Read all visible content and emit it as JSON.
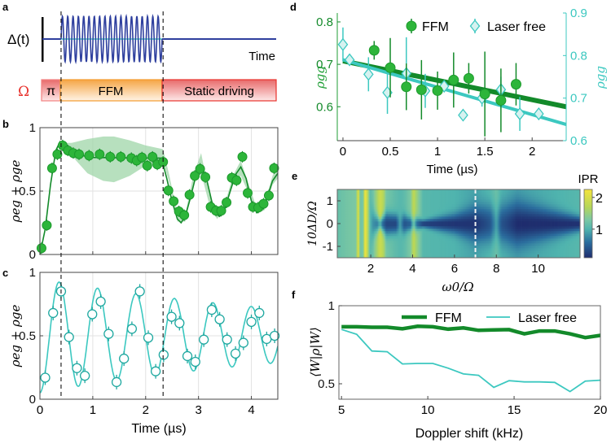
{
  "colors": {
    "ffm": "#1f9e35",
    "ffm_dark": "#138a2a",
    "laser": "#3cc8c0",
    "delta": "#2e3f9e",
    "omega": "#e8322d",
    "orange": "#f39a2c"
  },
  "panel_labels": [
    "a",
    "b",
    "c",
    "d",
    "e",
    "f"
  ],
  "panel_a": {
    "delta_label": "Δ(t)",
    "time_label": "Time",
    "omega_label": "Ω",
    "segments": [
      "π",
      "FFM",
      "Static driving"
    ],
    "ffm_cycles": 19
  },
  "chart_data": [
    {
      "id": "b",
      "type": "scatter",
      "xlabel": "",
      "ylabel": "ρeg + ρge",
      "xlim": [
        0,
        4.5
      ],
      "ylim": [
        0,
        1
      ],
      "yticks": [
        0,
        0.5,
        1
      ],
      "yticklabels": [
        "0",
        "0.5",
        "1"
      ],
      "xgrid": [
        1,
        2,
        3,
        4
      ],
      "ygrid": [
        0.5
      ],
      "dashed_x": [
        0.4,
        2.33
      ],
      "points": {
        "x": [
          0.03,
          0.13,
          0.23,
          0.33,
          0.43,
          0.53,
          0.63,
          0.74,
          0.93,
          1.13,
          1.33,
          1.53,
          1.73,
          1.83,
          1.93,
          2.03,
          2.13,
          2.22,
          2.33,
          2.43,
          2.53,
          2.63,
          2.73,
          2.83,
          2.93,
          3.03,
          3.13,
          3.23,
          3.33,
          3.43,
          3.53,
          3.63,
          3.72,
          3.83,
          3.93,
          4.03,
          4.13,
          4.23,
          4.33,
          4.43
        ],
        "y": [
          0.05,
          0.23,
          0.68,
          0.79,
          0.86,
          0.82,
          0.8,
          0.79,
          0.78,
          0.79,
          0.77,
          0.77,
          0.76,
          0.74,
          0.765,
          0.7,
          0.77,
          0.71,
          0.73,
          0.505,
          0.42,
          0.34,
          0.31,
          0.47,
          0.62,
          0.675,
          0.61,
          0.375,
          0.345,
          0.345,
          0.41,
          0.605,
          0.585,
          0.77,
          0.485,
          0.375,
          0.37,
          0.4,
          0.465,
          0.68
        ]
      },
      "fit": {
        "x": [
          0,
          0.1,
          0.2,
          0.3,
          0.38,
          0.45,
          0.6,
          0.8,
          1,
          1.5,
          2,
          2.3,
          2.4,
          2.5,
          2.6,
          2.67,
          2.75,
          2.85,
          2.95,
          3.05,
          3.15,
          3.25,
          3.33,
          3.4,
          3.5,
          3.6,
          3.7,
          3.8,
          3.9,
          4.0,
          4.1,
          4.2,
          4.3,
          4.4,
          4.5
        ],
        "y": [
          0,
          0.2,
          0.55,
          0.82,
          0.89,
          0.87,
          0.81,
          0.78,
          0.765,
          0.762,
          0.76,
          0.76,
          0.6,
          0.42,
          0.28,
          0.25,
          0.3,
          0.45,
          0.62,
          0.7,
          0.6,
          0.42,
          0.32,
          0.3,
          0.36,
          0.5,
          0.63,
          0.69,
          0.6,
          0.42,
          0.33,
          0.35,
          0.45,
          0.58,
          0.64
        ]
      },
      "band": {
        "x": [
          0.38,
          0.6,
          0.9,
          1.2,
          1.4,
          1.7,
          2.0,
          2.33,
          2.45,
          2.6,
          2.75,
          2.9,
          3.05,
          3.2,
          3.35,
          3.5,
          3.65,
          3.8,
          3.95,
          4.1,
          4.25,
          4.4,
          4.5
        ],
        "upper": [
          0.88,
          0.88,
          0.91,
          0.93,
          0.93,
          0.9,
          0.86,
          0.83,
          0.62,
          0.32,
          0.32,
          0.62,
          0.8,
          0.48,
          0.33,
          0.4,
          0.62,
          0.74,
          0.55,
          0.37,
          0.4,
          0.62,
          0.72
        ],
        "lower": [
          0.86,
          0.78,
          0.64,
          0.58,
          0.57,
          0.62,
          0.7,
          0.74,
          0.56,
          0.26,
          0.26,
          0.56,
          0.64,
          0.4,
          0.28,
          0.35,
          0.55,
          0.62,
          0.48,
          0.32,
          0.35,
          0.55,
          0.6
        ]
      }
    },
    {
      "id": "c",
      "type": "scatter",
      "xlabel": "Time (µs)",
      "ylabel": "ρeg + ρge",
      "xlim": [
        0,
        4.5
      ],
      "ylim": [
        0,
        1
      ],
      "xticks": [
        0,
        1,
        2,
        3,
        4
      ],
      "xticklabels": [
        "0",
        "1",
        "2",
        "3",
        "4"
      ],
      "yticks": [
        0,
        0.5,
        1
      ],
      "yticklabels": [
        "0",
        "0.5",
        "1"
      ],
      "xgrid": [
        1,
        2,
        3,
        4
      ],
      "ygrid": [
        0.5
      ],
      "dashed_x": [
        0.4,
        2.33
      ],
      "points": {
        "x": [
          0.1,
          0.25,
          0.4,
          0.55,
          0.7,
          0.85,
          0.99,
          1.15,
          1.3,
          1.45,
          1.59,
          1.74,
          1.89,
          2.05,
          2.19,
          2.34,
          2.49,
          2.64,
          2.79,
          2.94,
          3.1,
          3.25,
          3.4,
          3.54,
          3.7,
          3.85,
          4.0,
          4.15,
          4.29,
          4.44
        ],
        "y": [
          0.17,
          0.68,
          0.85,
          0.49,
          0.245,
          0.185,
          0.67,
          0.77,
          0.515,
          0.135,
          0.32,
          0.555,
          0.85,
          0.485,
          0.22,
          0.35,
          0.65,
          0.6,
          0.34,
          0.295,
          0.47,
          0.705,
          0.63,
          0.47,
          0.36,
          0.445,
          0.61,
          0.68,
          0.475,
          0.5
        ]
      },
      "fit": {
        "model": "offset - amplitude*exp(-t/tau)*cos(2*pi*freq*t)",
        "offset": 0.5,
        "amplitude": 0.45,
        "tau": 6,
        "freq": 1.375
      }
    },
    {
      "id": "d",
      "type": "scatter",
      "xlabel": "Time (µs)",
      "ylabel_left": "ρgg",
      "ylabel_right": "ρgg",
      "xlim": [
        -0.06,
        2.36
      ],
      "ylim_left": [
        0.52,
        0.821
      ],
      "ylim_right": [
        0.6,
        0.9
      ],
      "xticks": [
        0,
        0.5,
        1,
        1.5,
        2
      ],
      "xticklabels": [
        "0",
        "0.5",
        "1",
        "1.5",
        "2"
      ],
      "yticks_left": [
        0.6,
        0.7,
        0.8
      ],
      "yticklabels_left": [
        "0.6",
        "0.7",
        "0.8"
      ],
      "yticks_right": [
        0.6,
        0.7,
        0.8,
        0.9
      ],
      "yticklabels_right": [
        "0.6",
        "0.7",
        "0.8",
        "0.9"
      ],
      "legend": [
        "FFM",
        "Laser free"
      ],
      "legend_position": "top-right",
      "series": [
        {
          "name": "FFM",
          "axis": "left",
          "x": [
            0.33,
            0.5,
            0.67,
            0.83,
            1.0,
            1.17,
            1.33,
            1.5,
            1.67,
            1.83
          ],
          "y": [
            0.733,
            0.692,
            0.647,
            0.64,
            0.638,
            0.663,
            0.667,
            0.63,
            0.615,
            0.653
          ],
          "err": [
            0.022,
            0.07,
            0.055,
            0.07,
            0.045,
            0.065,
            0.036,
            0.1,
            0.075,
            0.05
          ],
          "fit_x": [
            0,
            2.36
          ],
          "fit_y": [
            0.708,
            0.6
          ]
        },
        {
          "name": "Laser free",
          "axis": "right",
          "x": [
            0,
            0.07,
            0.27,
            0.47,
            0.67,
            0.87,
            1.07,
            1.27,
            1.47,
            1.67,
            1.87,
            2.07
          ],
          "y": [
            0.826,
            0.79,
            0.756,
            0.713,
            0.758,
            0.717,
            0.728,
            0.66,
            0.7,
            0.72,
            0.663,
            0.663
          ],
          "err": [
            0.04,
            0.01,
            0.04,
            0.05,
            0.085,
            0.04,
            0.01,
            0,
            0.02,
            0.03,
            0.04,
            0.01
          ],
          "fit_x": [
            0,
            2.36
          ],
          "fit_y": [
            0.79,
            0.638
          ]
        }
      ]
    },
    {
      "id": "e",
      "type": "heatmap",
      "xlabel": "ω0/Ω",
      "ylabel": "10ΔD/Ω",
      "colorbar_label": "IPR",
      "xlim": [
        0.4,
        12
      ],
      "ylim": [
        -1.5,
        1.5
      ],
      "clim": [
        0.1,
        2.25
      ],
      "xticks": [
        2,
        4,
        6,
        8,
        10
      ],
      "xticklabels": [
        "2",
        "4",
        "6",
        "8",
        "10"
      ],
      "yticks": [
        -1,
        0,
        1
      ],
      "yticklabels": [
        "-1",
        "0",
        "1"
      ],
      "cticks": [
        1,
        2
      ],
      "cticklabels": [
        "1",
        "2"
      ],
      "dashed_x": 7,
      "columns_note": "IPR(x,y) = edge - (edge-center)*exp(-(y/width)^2), linearly interpolated between columns",
      "columns": [
        [
          0.4,
          1.15,
          1.15,
          1
        ],
        [
          0.9,
          1.25,
          1.25,
          1
        ],
        [
          1.3,
          1.3,
          1.3,
          1
        ],
        [
          1.4,
          2.1,
          2.1,
          1
        ],
        [
          1.5,
          1.2,
          1.2,
          1
        ],
        [
          1.65,
          1.3,
          1.3,
          1
        ],
        [
          1.72,
          2.2,
          2.2,
          1
        ],
        [
          1.85,
          1.8,
          1.8,
          1
        ],
        [
          1.95,
          1.1,
          1.1,
          1
        ],
        [
          2.1,
          0.8,
          1.2,
          0.6
        ],
        [
          2.3,
          0.7,
          1.6,
          0.4
        ],
        [
          2.45,
          1.0,
          1.9,
          0.25
        ],
        [
          2.6,
          0.5,
          1.7,
          0.4
        ],
        [
          2.75,
          0.3,
          1.25,
          0.5
        ],
        [
          3.2,
          0.3,
          1.1,
          0.4
        ],
        [
          3.4,
          0.9,
          1.05,
          0.4
        ],
        [
          3.6,
          0.4,
          1.1,
          0.4
        ],
        [
          3.9,
          0.5,
          1.3,
          0.3
        ],
        [
          4.05,
          1.2,
          1.8,
          0.3
        ],
        [
          4.2,
          0.6,
          1.5,
          0.3
        ],
        [
          4.5,
          0.2,
          1.05,
          0.15
        ],
        [
          6,
          0.15,
          1.0,
          0.4
        ],
        [
          7,
          0.15,
          0.9,
          0.7
        ],
        [
          7.7,
          0.4,
          1.05,
          0.8
        ],
        [
          8.0,
          0.9,
          1.2,
          0.8
        ],
        [
          8.25,
          0.4,
          1.0,
          0.8
        ],
        [
          9,
          0.1,
          0.9,
          0.9
        ],
        [
          10,
          0.1,
          0.95,
          0.7
        ],
        [
          12,
          0.12,
          1.05,
          0.3
        ]
      ]
    },
    {
      "id": "f",
      "type": "line",
      "xlabel": "Doppler shift (kHz)",
      "ylabel": "⟨W|ρ|W⟩",
      "xlim": [
        4.85,
        20
      ],
      "ylim": [
        0.401,
        1
      ],
      "xticks": [
        5,
        10,
        15,
        20
      ],
      "xticklabels": [
        "5",
        "10",
        "15",
        "20"
      ],
      "yticks": [
        0.5,
        1
      ],
      "yticklabels": [
        "0.5",
        "1"
      ],
      "legend": [
        "FFM",
        "Laser free"
      ],
      "legend_position": "top-right",
      "x": [
        5,
        5.88,
        6.76,
        7.65,
        8.53,
        9.41,
        10.29,
        11.18,
        12.06,
        12.94,
        13.82,
        14.71,
        15.59,
        16.47,
        17.35,
        18.24,
        19.12,
        20
      ],
      "series": [
        {
          "name": "FFM",
          "y": [
            0.865,
            0.865,
            0.862,
            0.862,
            0.852,
            0.868,
            0.865,
            0.85,
            0.858,
            0.842,
            0.845,
            0.847,
            0.82,
            0.838,
            0.838,
            0.82,
            0.796,
            0.81
          ]
        },
        {
          "name": "Laser free",
          "y": [
            0.848,
            0.817,
            0.71,
            0.705,
            0.627,
            0.63,
            0.63,
            0.6,
            0.563,
            0.554,
            0.477,
            0.52,
            0.512,
            0.512,
            0.509,
            0.45,
            0.517,
            0.523
          ]
        }
      ]
    }
  ]
}
